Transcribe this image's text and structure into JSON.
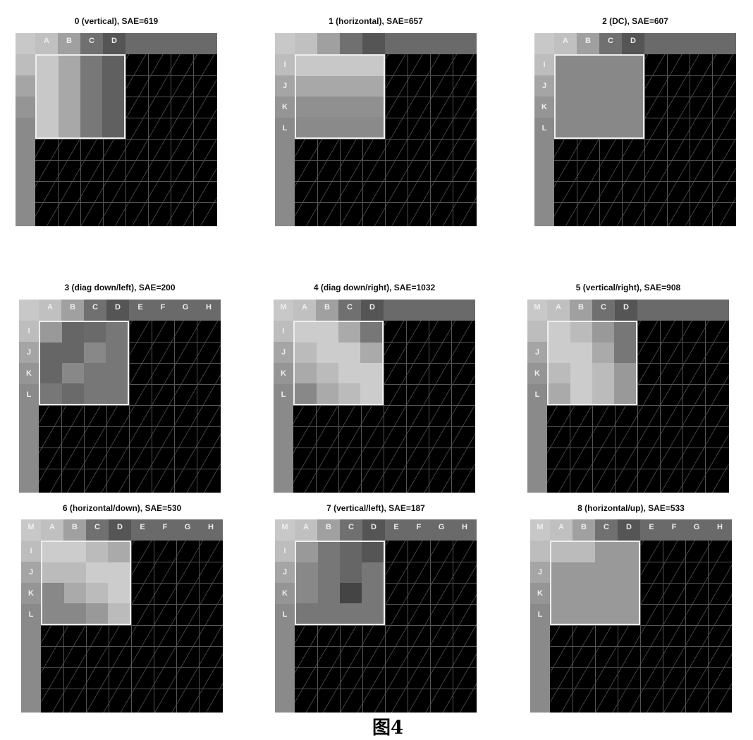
{
  "caption": "图4",
  "panels": [
    {
      "title": "0 (vertical), SAE=619",
      "top_labels": [
        "",
        "A",
        "B",
        "C",
        "D",
        "",
        "",
        "",
        ""
      ],
      "left_labels": [
        "",
        "",
        "",
        ""
      ],
      "block": [
        [
          "#c8c8c8",
          "#a8a8a8",
          "#787878",
          "#606060"
        ],
        [
          "#c8c8c8",
          "#a8a8a8",
          "#787878",
          "#606060"
        ],
        [
          "#c8c8c8",
          "#a8a8a8",
          "#787878",
          "#606060"
        ],
        [
          "#c8c8c8",
          "#a8a8a8",
          "#787878",
          "#606060"
        ]
      ]
    },
    {
      "title": "1 (horizontal), SAE=657",
      "top_labels": [
        "",
        "",
        "",
        "",
        "",
        "",
        "",
        "",
        ""
      ],
      "left_labels": [
        "I",
        "J",
        "K",
        "L"
      ],
      "block": [
        [
          "#c8c8c8",
          "#c8c8c8",
          "#c8c8c8",
          "#c8c8c8"
        ],
        [
          "#a8a8a8",
          "#a8a8a8",
          "#a8a8a8",
          "#a8a8a8"
        ],
        [
          "#909090",
          "#909090",
          "#909090",
          "#909090"
        ],
        [
          "#8a8a8a",
          "#8a8a8a",
          "#8a8a8a",
          "#8a8a8a"
        ]
      ]
    },
    {
      "title": "2 (DC), SAE=607",
      "top_labels": [
        "",
        "A",
        "B",
        "C",
        "D",
        "",
        "",
        "",
        ""
      ],
      "left_labels": [
        "I",
        "J",
        "K",
        "L"
      ],
      "block": [
        [
          "#888888",
          "#888888",
          "#888888",
          "#888888"
        ],
        [
          "#888888",
          "#888888",
          "#888888",
          "#888888"
        ],
        [
          "#888888",
          "#888888",
          "#888888",
          "#888888"
        ],
        [
          "#888888",
          "#888888",
          "#888888",
          "#888888"
        ]
      ]
    },
    {
      "title": "3 (diag down/left), SAE=200",
      "top_labels": [
        "",
        "A",
        "B",
        "C",
        "D",
        "E",
        "F",
        "G",
        "H"
      ],
      "left_labels": [
        "I",
        "J",
        "K",
        "L"
      ],
      "block": [
        [
          "#999999",
          "#666666",
          "#6a6a6a",
          "#777777"
        ],
        [
          "#666666",
          "#666666",
          "#888888",
          "#777777"
        ],
        [
          "#666666",
          "#888888",
          "#777777",
          "#777777"
        ],
        [
          "#777777",
          "#6a6a6a",
          "#777777",
          "#777777"
        ]
      ]
    },
    {
      "title": "4 (diag down/right), SAE=1032",
      "top_labels": [
        "M",
        "A",
        "B",
        "C",
        "D",
        "",
        "",
        "",
        ""
      ],
      "left_labels": [
        "I",
        "J",
        "K",
        "L"
      ],
      "block": [
        [
          "#cccccc",
          "#cccccc",
          "#aaaaaa",
          "#777777"
        ],
        [
          "#bbbbbb",
          "#cccccc",
          "#cccccc",
          "#aaaaaa"
        ],
        [
          "#aaaaaa",
          "#bbbbbb",
          "#cccccc",
          "#cccccc"
        ],
        [
          "#888888",
          "#aaaaaa",
          "#bbbbbb",
          "#cccccc"
        ]
      ]
    },
    {
      "title": "5 (vertical/right), SAE=908",
      "top_labels": [
        "M",
        "A",
        "B",
        "C",
        "D",
        "",
        "",
        "",
        ""
      ],
      "left_labels": [
        "",
        "J",
        "K",
        "L"
      ],
      "block": [
        [
          "#cccccc",
          "#bbbbbb",
          "#999999",
          "#777777"
        ],
        [
          "#cccccc",
          "#cccccc",
          "#aaaaaa",
          "#777777"
        ],
        [
          "#bbbbbb",
          "#cccccc",
          "#bbbbbb",
          "#999999"
        ],
        [
          "#aaaaaa",
          "#cccccc",
          "#bbbbbb",
          "#999999"
        ]
      ]
    },
    {
      "title": "6 (horizontal/down), SAE=530",
      "top_labels": [
        "M",
        "A",
        "B",
        "C",
        "D",
        "E",
        "F",
        "G",
        "H"
      ],
      "left_labels": [
        "I",
        "J",
        "K",
        "L"
      ],
      "block": [
        [
          "#cccccc",
          "#cccccc",
          "#bbbbbb",
          "#aaaaaa"
        ],
        [
          "#bbbbbb",
          "#bbbbbb",
          "#cccccc",
          "#cccccc"
        ],
        [
          "#888888",
          "#aaaaaa",
          "#bbbbbb",
          "#cccccc"
        ],
        [
          "#888888",
          "#888888",
          "#999999",
          "#bbbbbb"
        ]
      ]
    },
    {
      "title": "7 (vertical/left), SAE=187",
      "top_labels": [
        "M",
        "A",
        "B",
        "C",
        "D",
        "E",
        "F",
        "G",
        "H"
      ],
      "left_labels": [
        "I",
        "J",
        "K",
        "L"
      ],
      "block": [
        [
          "#999999",
          "#777777",
          "#666666",
          "#555555"
        ],
        [
          "#888888",
          "#777777",
          "#666666",
          "#777777"
        ],
        [
          "#888888",
          "#777777",
          "#444444",
          "#777777"
        ],
        [
          "#777777",
          "#777777",
          "#777777",
          "#777777"
        ]
      ]
    },
    {
      "title": "8 (horizontal/up), SAE=533",
      "top_labels": [
        "M",
        "A",
        "B",
        "C",
        "D",
        "E",
        "F",
        "G",
        "H"
      ],
      "left_labels": [
        "",
        "J",
        "K",
        "L"
      ],
      "block": [
        [
          "#bbbbbb",
          "#bbbbbb",
          "#999999",
          "#999999"
        ],
        [
          "#999999",
          "#999999",
          "#999999",
          "#999999"
        ],
        [
          "#999999",
          "#999999",
          "#999999",
          "#999999"
        ],
        [
          "#999999",
          "#999999",
          "#999999",
          "#999999"
        ]
      ]
    }
  ]
}
